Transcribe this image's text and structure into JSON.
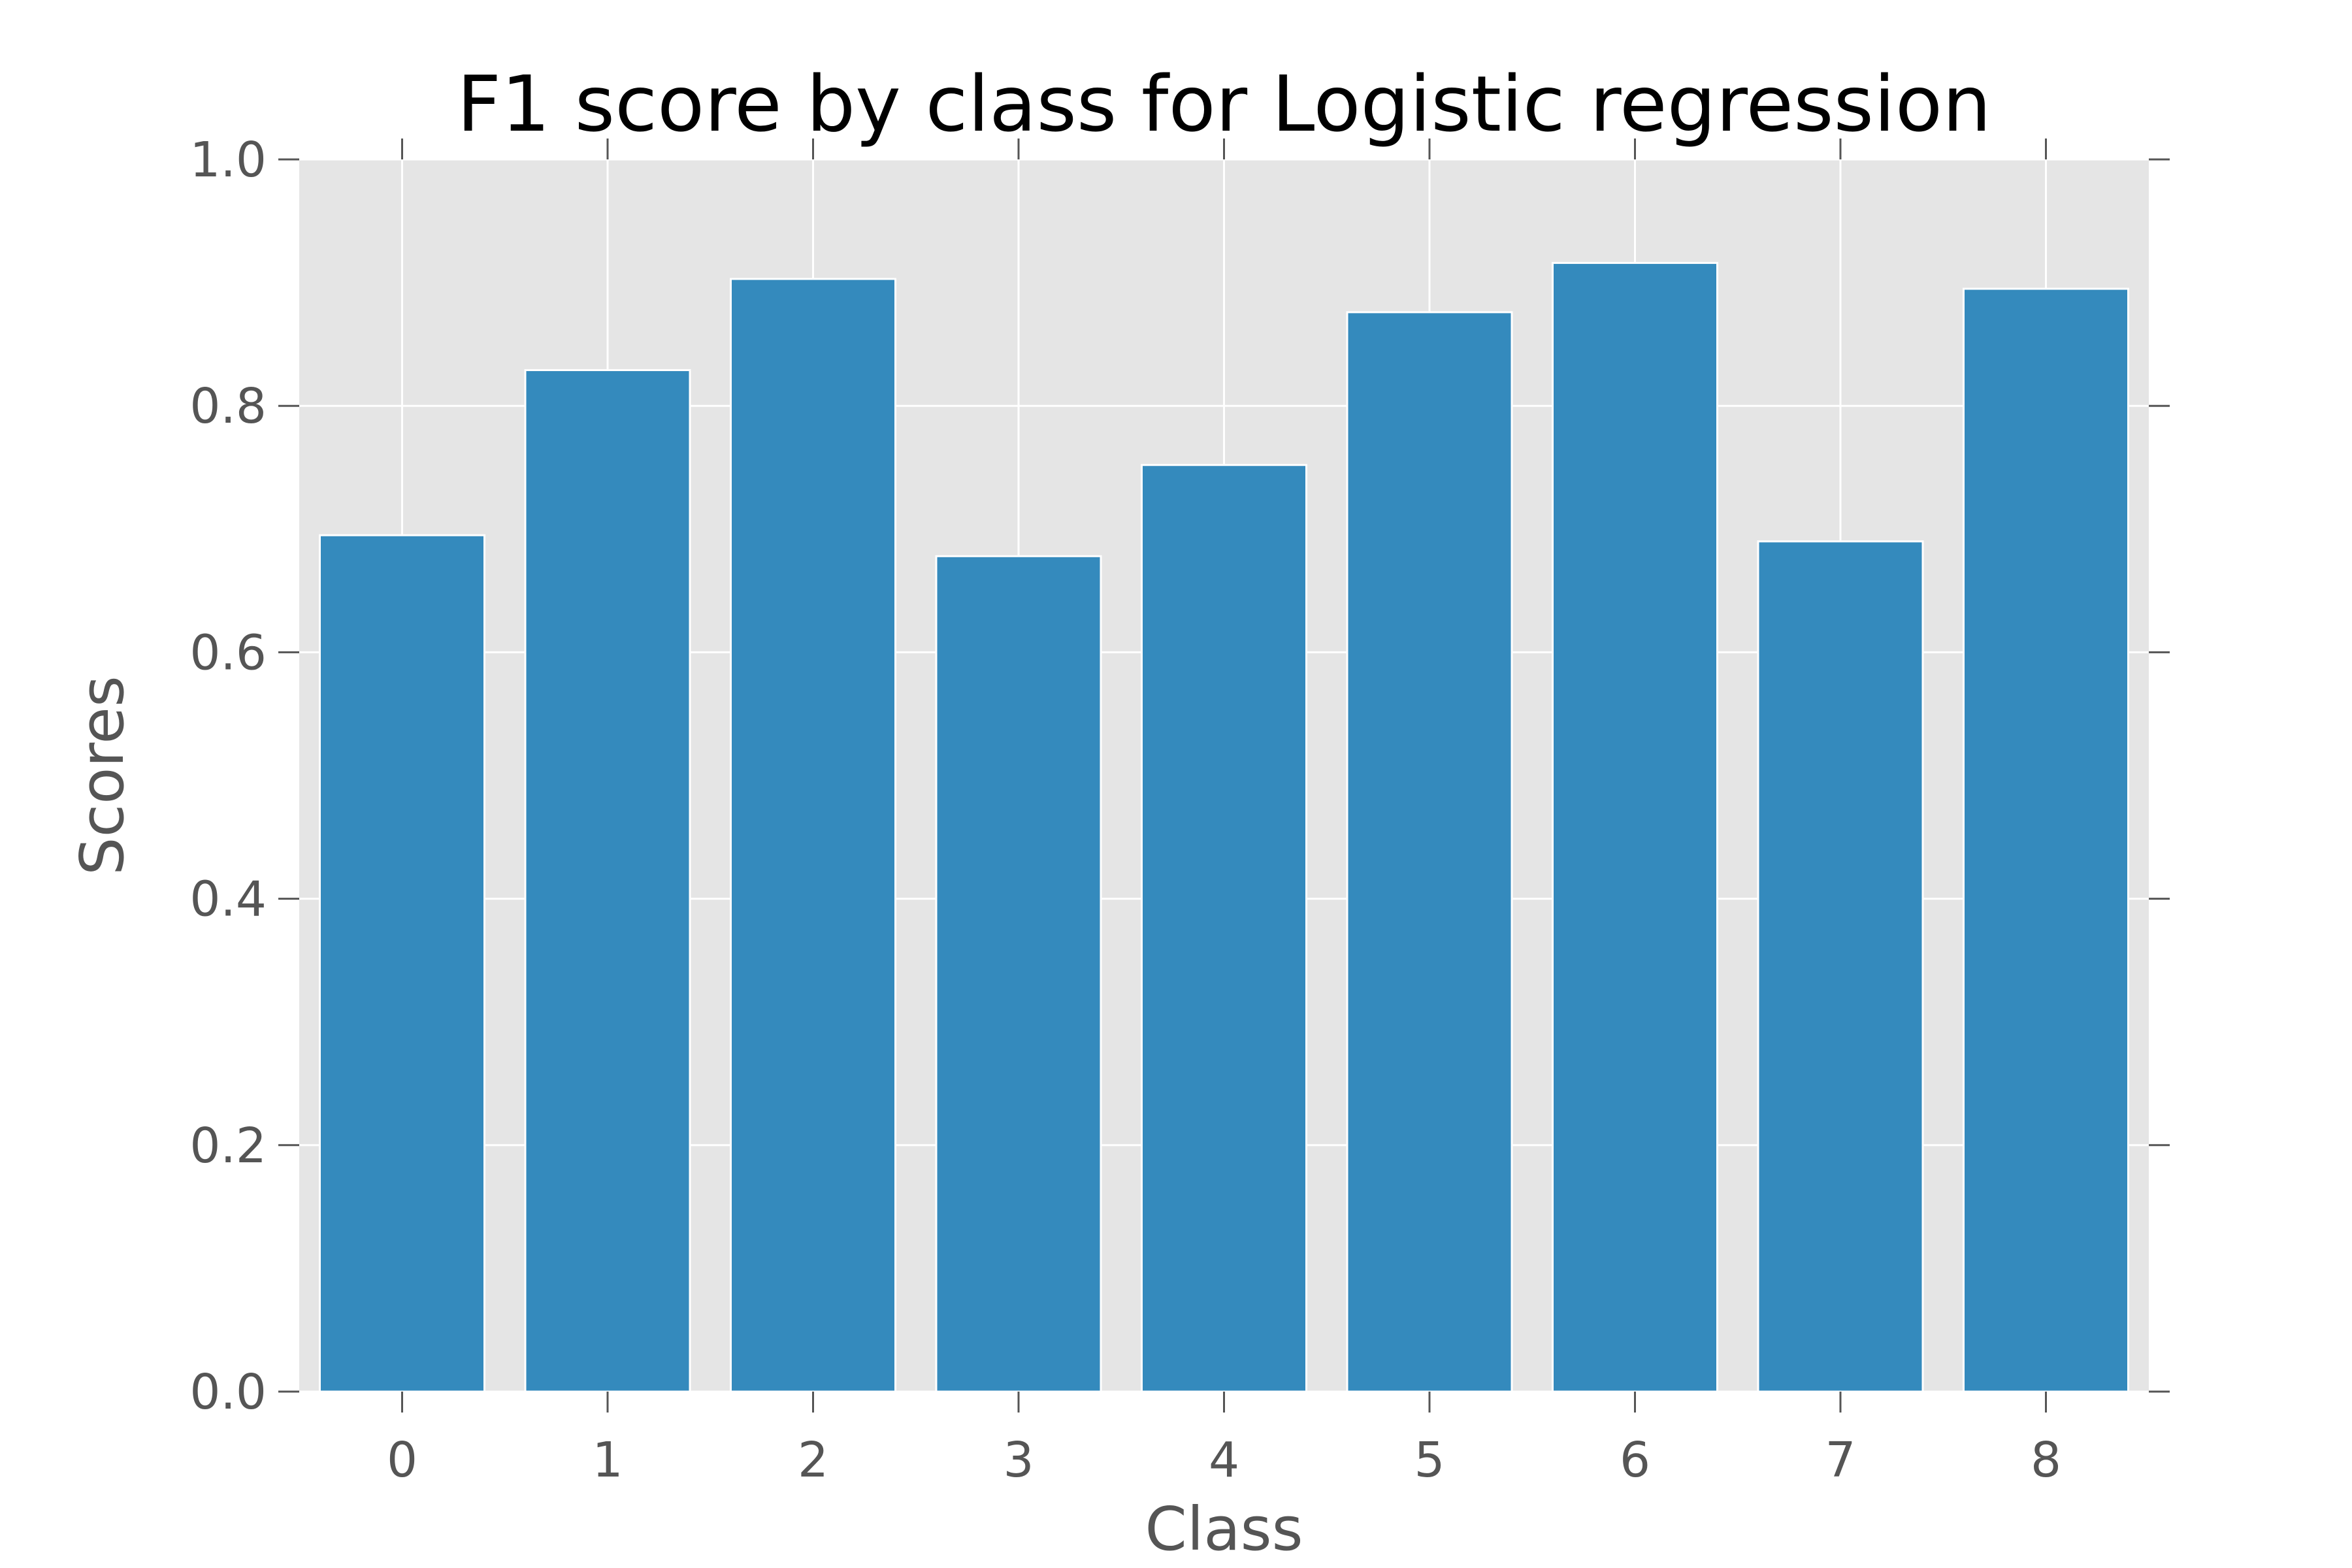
{
  "chart_data": {
    "type": "bar",
    "title": "F1 score by class for Logistic regression",
    "xlabel": "Class",
    "ylabel": "Scores",
    "categories": [
      "0",
      "1",
      "2",
      "3",
      "4",
      "5",
      "6",
      "7",
      "8"
    ],
    "values": [
      0.695,
      0.829,
      0.903,
      0.678,
      0.752,
      0.876,
      0.916,
      0.69,
      0.895
    ],
    "ylim": [
      0,
      1.0
    ],
    "yticks": [
      "0.0",
      "0.2",
      "0.4",
      "0.6",
      "0.8",
      "1.0"
    ],
    "grid": true,
    "colors": {
      "bar": "#348abd",
      "plot_background": "#e5e5e5"
    }
  }
}
